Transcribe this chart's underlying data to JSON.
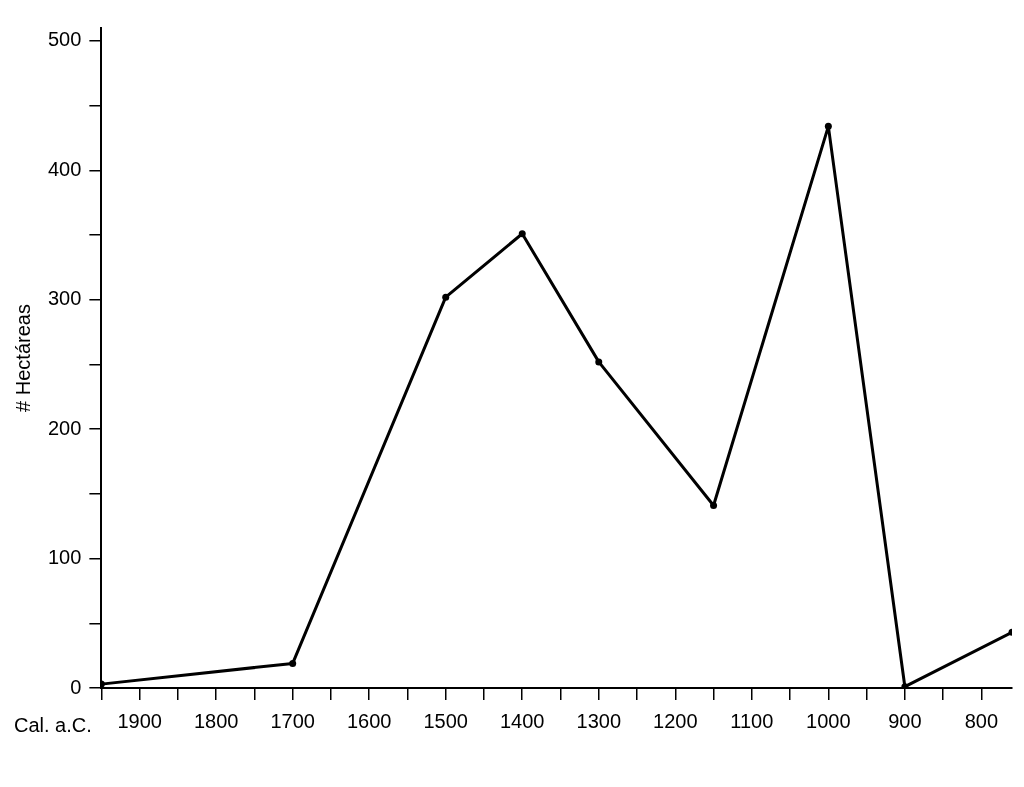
{
  "chart_data": {
    "type": "line",
    "xlabel": "Cal. a.C.",
    "ylabel": "# Hectáreas",
    "x": [
      1950,
      1700,
      1500,
      1400,
      1300,
      1150,
      1000,
      900,
      760
    ],
    "series": [
      {
        "color": "#000000",
        "values": [
          3,
          19,
          302,
          351,
          252,
          141,
          434,
          1,
          43
        ]
      }
    ],
    "xlim": [
      1950,
      760
    ],
    "xticks": [
      {
        "value": 1950,
        "label": null
      },
      1900,
      {
        "value": 1850,
        "label": null
      },
      1800,
      {
        "value": 1750,
        "label": null
      },
      1700,
      {
        "value": 1650,
        "label": null
      },
      1600,
      {
        "value": 1550,
        "label": null
      },
      1500,
      {
        "value": 1450,
        "label": null
      },
      1400,
      {
        "value": 1350,
        "label": null
      },
      1300,
      {
        "value": 1250,
        "label": null
      },
      1200,
      {
        "value": 1150,
        "label": null
      },
      1100,
      {
        "value": 1050,
        "label": null
      },
      1000,
      {
        "value": 950,
        "label": null
      },
      900,
      {
        "value": 850,
        "label": null
      },
      800
    ],
    "ylim": [
      0,
      510
    ],
    "yticks": [
      0,
      {
        "value": 50,
        "label": null
      },
      100,
      {
        "value": 150,
        "label": null
      },
      200,
      {
        "value": 250,
        "label": null
      },
      300,
      {
        "value": 350,
        "label": null
      },
      400,
      {
        "value": 450,
        "label": null
      },
      500
    ],
    "grid": false,
    "legend": false,
    "marker": "circle",
    "line_style": "solid"
  }
}
